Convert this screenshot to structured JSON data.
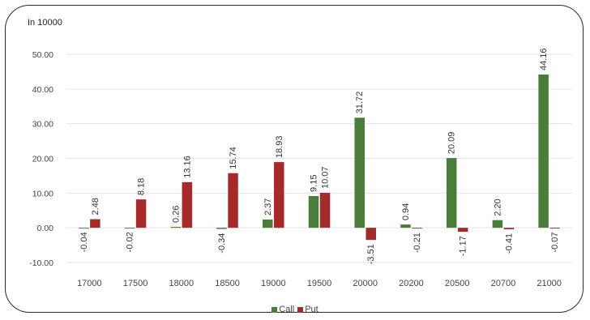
{
  "chart_data": {
    "type": "bar",
    "unit_label": "In 10000",
    "categories": [
      "17000",
      "17500",
      "18000",
      "18500",
      "19000",
      "19500",
      "20000",
      "20200",
      "20500",
      "20700",
      "21000"
    ],
    "series": [
      {
        "name": "Call",
        "color": "#4a7c3a",
        "values": [
          -0.04,
          -0.02,
          0.26,
          -0.34,
          2.37,
          9.15,
          31.72,
          0.94,
          20.09,
          2.2,
          44.16
        ],
        "labels": [
          "-0.04",
          "-0.02",
          "0.26",
          "-0.34",
          "2.37",
          "9.15",
          "31.72",
          "0.94",
          "20.09",
          "2.20",
          "44.16"
        ]
      },
      {
        "name": "Put",
        "color": "#a52a2a",
        "values": [
          2.48,
          8.18,
          13.16,
          15.74,
          18.93,
          10.07,
          -3.51,
          -0.21,
          -1.17,
          -0.41,
          -0.07
        ],
        "labels": [
          "2.48",
          "8.18",
          "13.16",
          "15.74",
          "18.93",
          "10.07",
          "-3.51",
          "-0.21",
          "-1.17",
          "-0.41",
          "-0.07"
        ]
      }
    ],
    "y_ticks": [
      "50.00",
      "40.00",
      "30.00",
      "20.00",
      "10.00",
      "0.00",
      "-10.00"
    ],
    "ylim": [
      -10,
      50
    ],
    "grid": true,
    "legend_position": "bottom"
  }
}
